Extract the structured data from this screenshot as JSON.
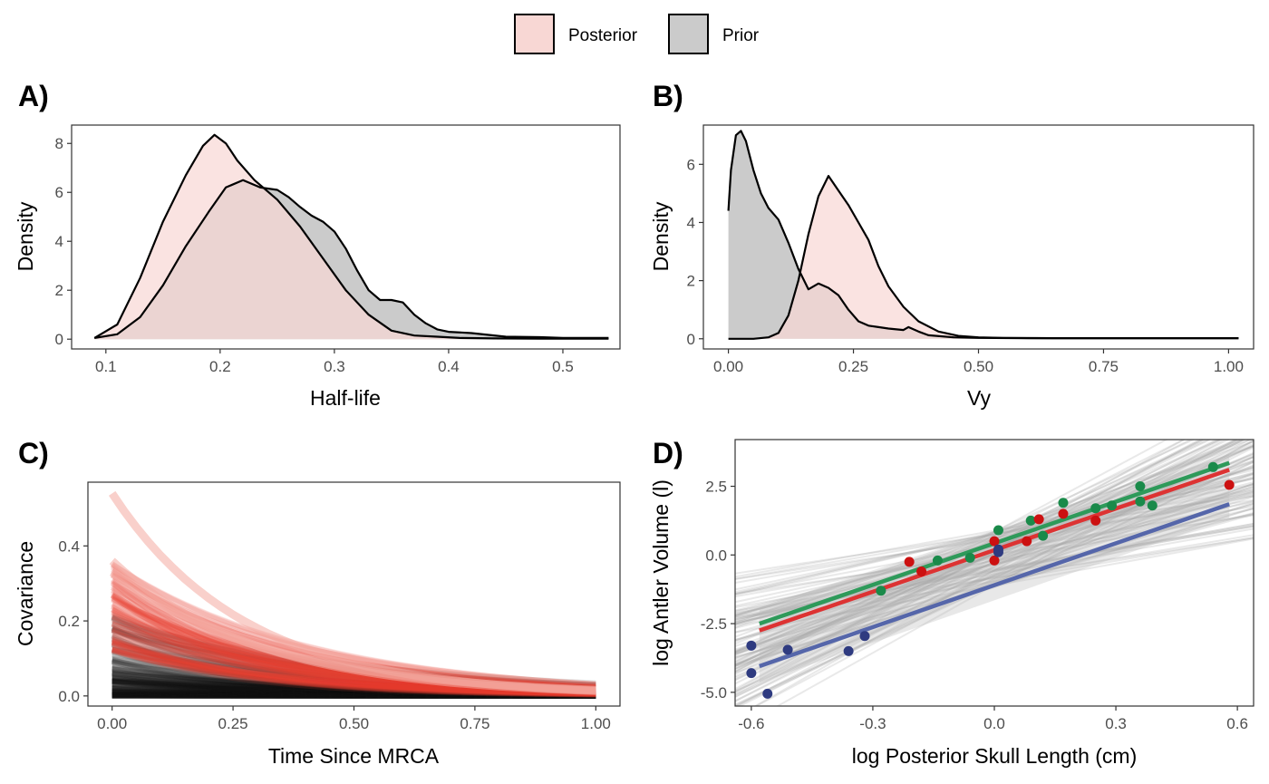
{
  "legend": {
    "entries": [
      {
        "name": "Posterior",
        "fill": "#f8d7d4"
      },
      {
        "name": "Prior",
        "fill": "#cbcbcb"
      }
    ],
    "placement": "top-center"
  },
  "chart_data": [
    {
      "panel": "A)",
      "type": "area",
      "xlabel": "Half-life",
      "ylabel": "Density",
      "xlim": [
        0.07,
        0.55
      ],
      "ylim": [
        -0.4,
        8.75
      ],
      "xticks": [
        "0.1",
        "0.2",
        "0.3",
        "0.4",
        "0.5"
      ],
      "yticks": [
        "0",
        "2",
        "4",
        "6",
        "8"
      ],
      "grid": false,
      "series": [
        {
          "name": "Prior",
          "color": "#cbcbcb",
          "x": [
            0.09,
            0.11,
            0.13,
            0.15,
            0.17,
            0.19,
            0.205,
            0.22,
            0.235,
            0.25,
            0.26,
            0.27,
            0.28,
            0.29,
            0.3,
            0.31,
            0.32,
            0.33,
            0.34,
            0.35,
            0.36,
            0.37,
            0.38,
            0.39,
            0.4,
            0.42,
            0.45,
            0.48,
            0.5,
            0.54
          ],
          "y": [
            0.05,
            0.2,
            0.9,
            2.2,
            3.8,
            5.2,
            6.2,
            6.5,
            6.2,
            6.1,
            5.8,
            5.4,
            5.05,
            4.8,
            4.4,
            3.7,
            2.8,
            2.0,
            1.6,
            1.6,
            1.5,
            1.0,
            0.65,
            0.4,
            0.3,
            0.25,
            0.1,
            0.08,
            0.05,
            0.05
          ]
        },
        {
          "name": "Posterior",
          "color": "#f8d7d4",
          "x": [
            0.09,
            0.11,
            0.13,
            0.15,
            0.17,
            0.185,
            0.195,
            0.205,
            0.215,
            0.23,
            0.25,
            0.27,
            0.29,
            0.31,
            0.33,
            0.35,
            0.37,
            0.39,
            0.41,
            0.44,
            0.48,
            0.54
          ],
          "y": [
            0.05,
            0.6,
            2.5,
            4.8,
            6.7,
            7.9,
            8.35,
            8.0,
            7.3,
            6.5,
            5.7,
            4.6,
            3.3,
            2.0,
            1.0,
            0.35,
            0.15,
            0.1,
            0.05,
            0.03,
            0.02,
            0.02
          ]
        }
      ]
    },
    {
      "panel": "B)",
      "type": "area",
      "xlabel": "Vy",
      "ylabel": "Density",
      "xlim": [
        -0.05,
        1.05
      ],
      "ylim": [
        -0.35,
        7.35
      ],
      "xticks": [
        "0.00",
        "0.25",
        "0.50",
        "0.75",
        "1.00"
      ],
      "yticks": [
        "0",
        "2",
        "4",
        "6"
      ],
      "grid": false,
      "series": [
        {
          "name": "Prior",
          "color": "#cbcbcb",
          "x": [
            0.0,
            0.005,
            0.015,
            0.025,
            0.035,
            0.05,
            0.065,
            0.08,
            0.1,
            0.12,
            0.14,
            0.16,
            0.18,
            0.2,
            0.22,
            0.24,
            0.26,
            0.28,
            0.3,
            0.32,
            0.35,
            0.36,
            0.38,
            0.4,
            0.45,
            0.5,
            0.6,
            0.8,
            1.02
          ],
          "y": [
            4.4,
            5.8,
            7.0,
            7.15,
            6.8,
            5.8,
            5.0,
            4.5,
            4.1,
            3.3,
            2.4,
            1.7,
            1.9,
            1.75,
            1.5,
            1.0,
            0.6,
            0.45,
            0.4,
            0.35,
            0.3,
            0.4,
            0.25,
            0.12,
            0.05,
            0.03,
            0.02,
            0.02,
            0.02
          ]
        },
        {
          "name": "Posterior",
          "color": "#f8d7d4",
          "x": [
            0.0,
            0.05,
            0.08,
            0.1,
            0.12,
            0.14,
            0.16,
            0.18,
            0.2,
            0.22,
            0.24,
            0.26,
            0.28,
            0.3,
            0.32,
            0.35,
            0.38,
            0.42,
            0.46,
            0.5,
            0.55,
            0.65,
            0.8,
            1.02
          ],
          "y": [
            0.0,
            0.0,
            0.05,
            0.2,
            0.8,
            2.0,
            3.6,
            4.9,
            5.6,
            5.1,
            4.6,
            4.0,
            3.4,
            2.5,
            1.8,
            1.1,
            0.6,
            0.25,
            0.1,
            0.05,
            0.03,
            0.02,
            0.02,
            0.02
          ]
        }
      ]
    },
    {
      "panel": "C)",
      "type": "line",
      "xlabel": "Time Since MRCA",
      "ylabel": "Covariance",
      "xlim": [
        -0.05,
        1.05
      ],
      "ylim": [
        -0.027,
        0.57
      ],
      "xticks": [
        "0.00",
        "0.25",
        "0.50",
        "0.75",
        "1.00"
      ],
      "yticks": [
        "0.0",
        "0.2",
        "0.4"
      ],
      "grid": false,
      "curve_model": "y = Vy * exp(-ln(2) * t / half-life)",
      "series": [
        {
          "name": "Prior",
          "color": "#111111",
          "Vy_range": [
            0.0,
            0.23
          ],
          "halflife_range": [
            0.15,
            0.4
          ]
        },
        {
          "name": "Posterior",
          "color": "#e8402f",
          "Vy_range": [
            0.12,
            0.36
          ],
          "halflife_range": [
            0.18,
            0.3
          ]
        }
      ],
      "highlight_curves": [
        {
          "Vy": 0.54,
          "halflife": 0.19
        },
        {
          "Vy": 0.36,
          "halflife": 0.21
        },
        {
          "Vy": 0.33,
          "halflife": 0.23
        }
      ]
    },
    {
      "panel": "D)",
      "type": "scatter",
      "xlabel": "log Posterior Skull Length (cm)",
      "ylabel": "log Antler Volume (l)",
      "xlim": [
        -0.64,
        0.64
      ],
      "ylim": [
        -5.5,
        4.2
      ],
      "xticks": [
        "-0.6",
        "-0.3",
        "0.0",
        "0.3",
        "0.6"
      ],
      "yticks": [
        "2.5",
        "0.0",
        "-2.5",
        "-5.0"
      ],
      "grid": false,
      "series": [
        {
          "name": "green",
          "color": "#1a8a4a",
          "x": [
            -0.28,
            -0.14,
            -0.06,
            0.01,
            0.09,
            0.12,
            0.17,
            0.25,
            0.29,
            0.36,
            0.36,
            0.39,
            0.54
          ],
          "y": [
            -1.3,
            -0.2,
            -0.1,
            0.9,
            1.25,
            0.7,
            1.9,
            1.7,
            1.8,
            1.95,
            2.5,
            1.8,
            3.2
          ]
        },
        {
          "name": "red",
          "color": "#cc1111",
          "x": [
            -0.21,
            -0.18,
            0.0,
            0.0,
            0.08,
            0.11,
            0.17,
            0.25,
            0.58
          ],
          "y": [
            -0.25,
            -0.6,
            0.5,
            -0.2,
            0.5,
            1.3,
            1.5,
            1.25,
            2.55
          ]
        },
        {
          "name": "blue",
          "color": "#2f3b80",
          "x": [
            -0.6,
            -0.6,
            -0.56,
            -0.51,
            -0.36,
            -0.32,
            0.01,
            0.01
          ],
          "y": [
            -3.3,
            -4.3,
            -5.05,
            -3.45,
            -3.5,
            -2.95,
            0.1,
            0.2
          ]
        }
      ],
      "fits": [
        {
          "name": "green",
          "color": "#2e9a5a",
          "x": [
            -0.58,
            0.58
          ],
          "y": [
            -2.5,
            3.35
          ]
        },
        {
          "name": "red",
          "color": "#dd3333",
          "x": [
            -0.58,
            0.58
          ],
          "y": [
            -2.75,
            3.1
          ]
        },
        {
          "name": "blue",
          "color": "#5566aa",
          "x": [
            -0.58,
            0.58
          ],
          "y": [
            -4.05,
            1.85
          ]
        }
      ],
      "posterior_lines": {
        "color": "#999999",
        "intercept_range": [
          -1.2,
          0.9
        ],
        "slope_range": [
          2.0,
          8.5
        ]
      }
    }
  ]
}
